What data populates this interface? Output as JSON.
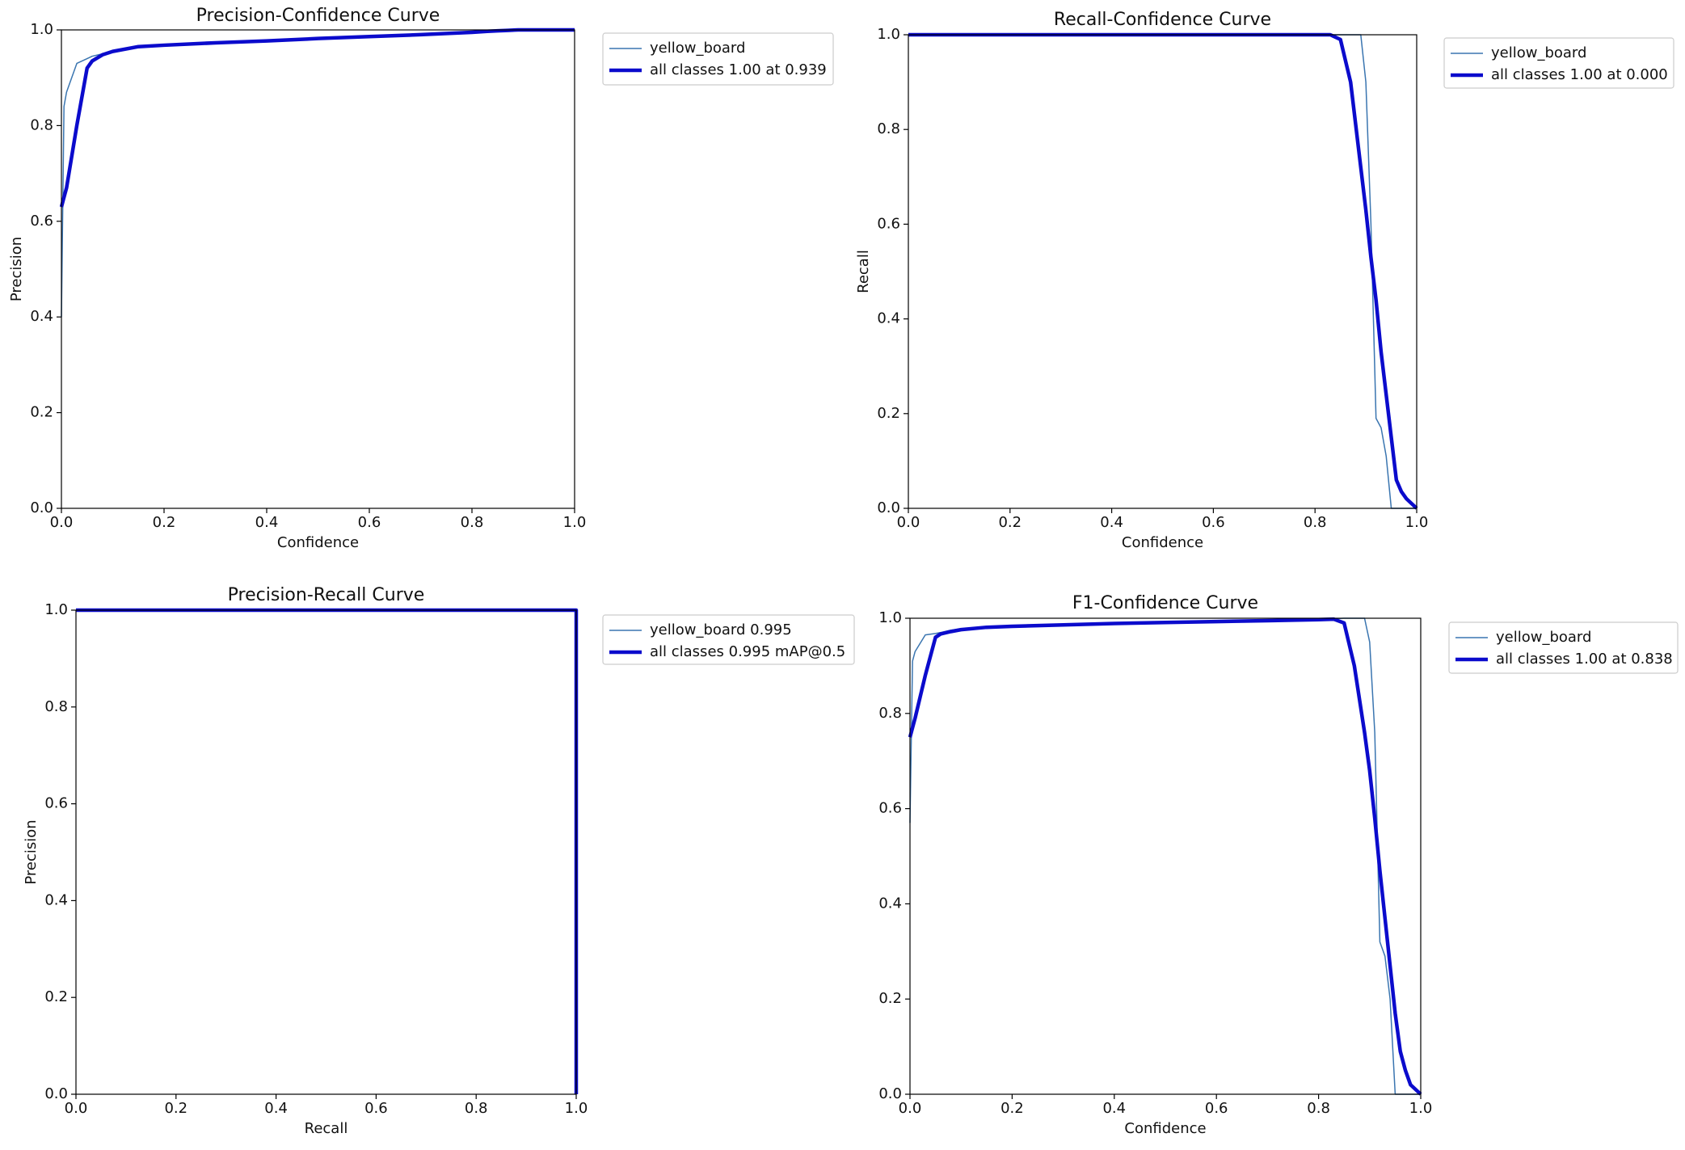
{
  "chart_data": [
    {
      "type": "line",
      "title": "Precision-Confidence Curve",
      "x_label": "Confidence",
      "y_label": "Precision",
      "x": [
        0,
        0.005,
        0.01,
        0.03,
        0.05,
        0.06,
        0.08,
        0.1,
        0.15,
        0.2,
        0.3,
        0.4,
        0.5,
        0.6,
        0.7,
        0.8,
        0.83,
        0.85,
        0.87,
        0.89,
        0.9,
        0.91,
        0.92,
        0.93,
        0.94,
        0.95,
        0.96,
        0.97,
        0.98,
        0.99,
        1.0
      ],
      "series": [
        {
          "name": "yellow_board",
          "color": "#3a75b0",
          "linewidth": 1.5,
          "values": [
            0.4,
            0.84,
            0.87,
            0.93,
            0.94,
            0.945,
            0.95,
            0.955,
            0.965,
            0.968,
            0.973,
            0.977,
            0.982,
            0.986,
            0.99,
            0.995,
            0.997,
            0.998,
            0.999,
            1.0,
            1.0,
            1.0,
            1.0,
            1.0,
            1.0,
            1.0,
            1.0,
            1.0,
            1.0,
            1.0,
            1.0
          ]
        },
        {
          "name": "all classes 1.00 at 0.939",
          "color": "#0b0bcc",
          "linewidth": 4.5,
          "values": [
            0.63,
            0.65,
            0.67,
            0.8,
            0.92,
            0.935,
            0.948,
            0.955,
            0.965,
            0.968,
            0.973,
            0.977,
            0.982,
            0.986,
            0.99,
            0.995,
            0.997,
            0.998,
            0.999,
            1.0,
            1.0,
            1.0,
            1.0,
            1.0,
            1.0,
            1.0,
            1.0,
            1.0,
            1.0,
            1.0,
            1.0
          ]
        }
      ],
      "xlim": [
        0,
        1
      ],
      "ylim": [
        0,
        1
      ],
      "xticks": [
        {
          "value": 0,
          "label": "0.0"
        },
        0.2,
        0.4,
        0.6,
        0.8,
        {
          "value": 1,
          "label": "1.0"
        }
      ],
      "yticks": [
        {
          "value": 0,
          "label": "0.0"
        },
        0.2,
        0.4,
        0.6,
        0.8,
        {
          "value": 1,
          "label": "1.0"
        }
      ]
    },
    {
      "type": "line",
      "title": "Recall-Confidence Curve",
      "x_label": "Confidence",
      "y_label": "Recall",
      "x": [
        0,
        0.1,
        0.2,
        0.3,
        0.4,
        0.5,
        0.6,
        0.7,
        0.8,
        0.83,
        0.85,
        0.87,
        0.89,
        0.9,
        0.91,
        0.92,
        0.93,
        0.94,
        0.95,
        0.96,
        0.97,
        0.98,
        0.99,
        1.0
      ],
      "series": [
        {
          "name": "yellow_board",
          "color": "#3a75b0",
          "linewidth": 1.5,
          "values": [
            1.0,
            1.0,
            1.0,
            1.0,
            1.0,
            1.0,
            1.0,
            1.0,
            1.0,
            1.0,
            1.0,
            1.0,
            1.0,
            0.9,
            0.6,
            0.19,
            0.17,
            0.11,
            0,
            0,
            0,
            0,
            0,
            0
          ]
        },
        {
          "name": "all classes 1.00 at 0.000",
          "color": "#0b0bcc",
          "linewidth": 4.5,
          "values": [
            1.0,
            1.0,
            1.0,
            1.0,
            1.0,
            1.0,
            1.0,
            1.0,
            1.0,
            1.0,
            0.99,
            0.9,
            0.72,
            0.63,
            0.53,
            0.44,
            0.33,
            0.24,
            0.15,
            0.06,
            0.035,
            0.02,
            0.01,
            0
          ]
        }
      ],
      "xlim": [
        0,
        1
      ],
      "ylim": [
        0,
        1
      ],
      "xticks": [
        {
          "value": 0,
          "label": "0.0"
        },
        0.2,
        0.4,
        0.6,
        0.8,
        {
          "value": 1,
          "label": "1.0"
        }
      ],
      "yticks": [
        {
          "value": 0,
          "label": "0.0"
        },
        0.2,
        0.4,
        0.6,
        0.8,
        {
          "value": 1,
          "label": "1.0"
        }
      ]
    },
    {
      "type": "line",
      "title": "Precision-Recall Curve",
      "x_label": "Recall",
      "y_label": "Precision",
      "x": [
        0,
        0.5,
        1,
        1
      ],
      "series": [
        {
          "name": "yellow_board 0.995",
          "color": "#3a75b0",
          "linewidth": 1.5,
          "values": [
            1,
            1,
            1,
            0
          ]
        },
        {
          "name": "all classes 0.995 mAP@0.5",
          "color": "#0b0bcc",
          "linewidth": 4.5,
          "values": [
            1,
            1,
            1,
            0
          ]
        }
      ],
      "xlim": [
        0,
        1
      ],
      "ylim": [
        0,
        1
      ],
      "xticks": [
        {
          "value": 0,
          "label": "0.0"
        },
        0.2,
        0.4,
        0.6,
        0.8,
        {
          "value": 1,
          "label": "1.0"
        }
      ],
      "yticks": [
        {
          "value": 0,
          "label": "0.0"
        },
        0.2,
        0.4,
        0.6,
        0.8,
        {
          "value": 1,
          "label": "1.0"
        }
      ]
    },
    {
      "type": "line",
      "title": "F1-Confidence Curve",
      "x_label": "Confidence",
      "y_label": null,
      "x": [
        0,
        0.005,
        0.01,
        0.03,
        0.05,
        0.06,
        0.08,
        0.1,
        0.15,
        0.2,
        0.3,
        0.4,
        0.5,
        0.6,
        0.7,
        0.8,
        0.83,
        0.85,
        0.87,
        0.89,
        0.9,
        0.91,
        0.92,
        0.93,
        0.94,
        0.95,
        0.96,
        0.97,
        0.98,
        0.99,
        1.0
      ],
      "series": [
        {
          "name": "yellow_board",
          "color": "#3a75b0",
          "linewidth": 1.5,
          "values": [
            0.57,
            0.91,
            0.93,
            0.965,
            0.968,
            0.97,
            0.975,
            0.978,
            0.982,
            0.984,
            0.987,
            0.99,
            0.992,
            0.994,
            0.996,
            0.998,
            0.999,
            1.0,
            1.0,
            1.0,
            0.95,
            0.76,
            0.32,
            0.29,
            0.2,
            0,
            0,
            0,
            0,
            0,
            0
          ]
        },
        {
          "name": "all classes 1.00 at 0.838",
          "color": "#0b0bcc",
          "linewidth": 4.5,
          "values": [
            0.75,
            0.77,
            0.79,
            0.88,
            0.96,
            0.967,
            0.972,
            0.976,
            0.981,
            0.983,
            0.986,
            0.989,
            0.991,
            0.993,
            0.995,
            0.997,
            0.998,
            0.99,
            0.9,
            0.76,
            0.68,
            0.58,
            0.47,
            0.37,
            0.27,
            0.17,
            0.09,
            0.05,
            0.02,
            0.01,
            0
          ]
        }
      ],
      "xlim": [
        0,
        1
      ],
      "ylim": [
        0,
        1
      ],
      "xticks": [
        {
          "value": 0,
          "label": "0.0"
        },
        0.2,
        0.4,
        0.6,
        0.8,
        {
          "value": 1,
          "label": "1.0"
        }
      ],
      "yticks": [
        {
          "value": 0,
          "label": "0.0"
        },
        0.2,
        0.4,
        0.6,
        0.8,
        {
          "value": 1,
          "label": "1.0"
        }
      ]
    }
  ]
}
